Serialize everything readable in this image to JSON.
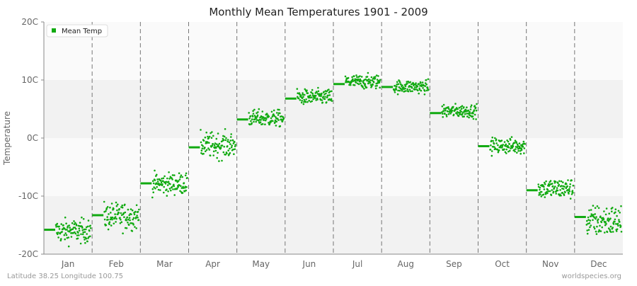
{
  "colors": {
    "series": "#11aa11",
    "band_light": "#fafafa",
    "band_dark": "#f2f2f2",
    "divider": "#777777",
    "axis": "#888888"
  },
  "chart_data": {
    "type": "scatter",
    "title": "Monthly Mean Temperatures 1901 - 2009",
    "ylabel": "Temperature",
    "xlabel": "",
    "ylim": [
      -20,
      20
    ],
    "y_ticks": [
      "20C",
      "10C",
      "0C",
      "-10C",
      "-20C"
    ],
    "y_tick_values": [
      20,
      10,
      0,
      -10,
      -20
    ],
    "categories": [
      "Jan",
      "Feb",
      "Mar",
      "Apr",
      "May",
      "Jun",
      "Jul",
      "Aug",
      "Sep",
      "Oct",
      "Nov",
      "Dec"
    ],
    "legend": {
      "position": "top-left",
      "entries": [
        "Mean Temp"
      ]
    },
    "grid": "alternating horizontal bands; dashed vertical month dividers",
    "series": [
      {
        "name": "Mean Temp",
        "months": [
          {
            "month": "Jan",
            "mean": -15.8,
            "min": -19.5,
            "max": -12.5
          },
          {
            "month": "Feb",
            "mean": -13.3,
            "min": -17.5,
            "max": -9.5
          },
          {
            "month": "Mar",
            "mean": -7.8,
            "min": -11.0,
            "max": -4.7
          },
          {
            "month": "Apr",
            "mean": -1.6,
            "min": -5.0,
            "max": 2.5
          },
          {
            "month": "May",
            "mean": 3.2,
            "min": 1.0,
            "max": 5.8
          },
          {
            "month": "Jun",
            "mean": 6.8,
            "min": 4.8,
            "max": 9.3
          },
          {
            "month": "Jul",
            "mean": 9.3,
            "min": 7.6,
            "max": 11.8
          },
          {
            "month": "Aug",
            "mean": 8.8,
            "min": 6.9,
            "max": 10.8
          },
          {
            "month": "Sep",
            "mean": 4.3,
            "min": 2.7,
            "max": 6.6
          },
          {
            "month": "Oct",
            "mean": -1.4,
            "min": -3.7,
            "max": 1.0
          },
          {
            "month": "Nov",
            "mean": -9.0,
            "min": -11.7,
            "max": -5.7
          },
          {
            "month": "Dec",
            "mean": -13.6,
            "min": -19.0,
            "max": -9.6
          }
        ]
      }
    ]
  },
  "footer": {
    "location": "Latitude 38.25 Longitude 100.75",
    "source": "worldspecies.org"
  }
}
